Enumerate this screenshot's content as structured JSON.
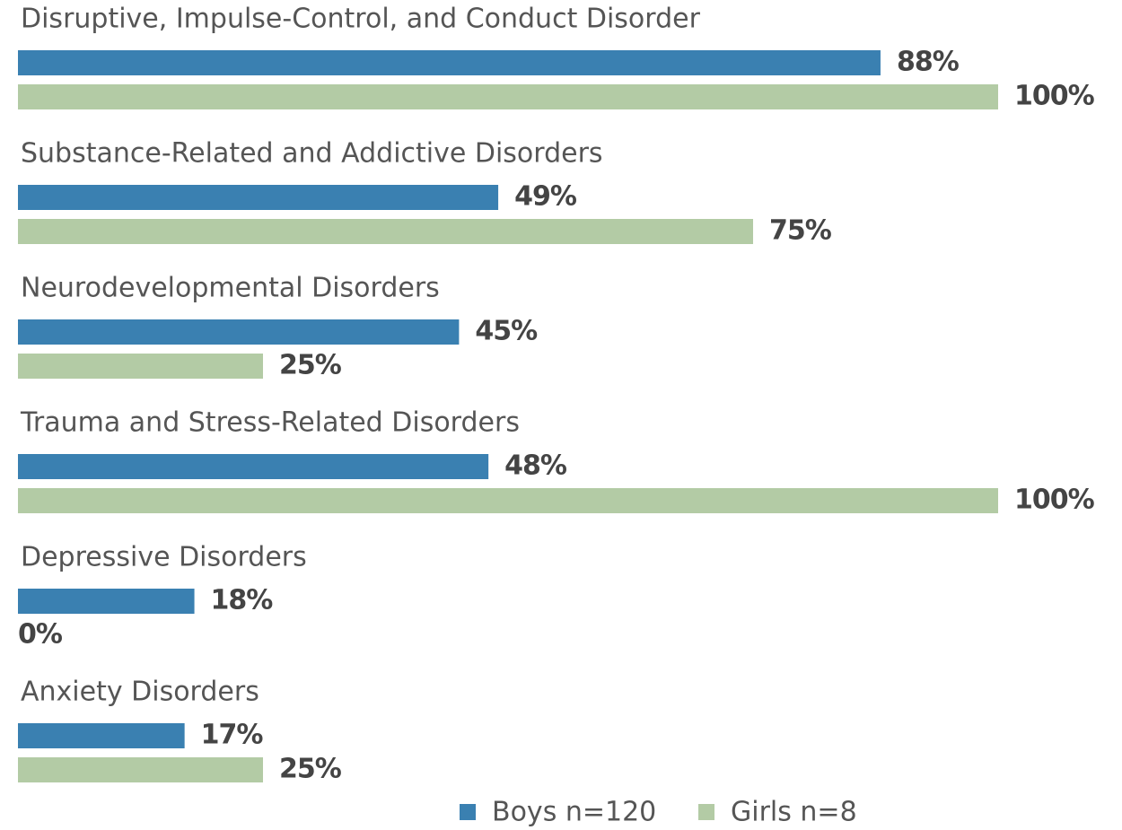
{
  "chart_data": {
    "type": "bar",
    "categories": [
      "Disruptive, Impulse-Control, and Conduct Disorder",
      "Substance-Related and Addictive Disorders",
      "Neurodevelopmental Disorders",
      "Trauma and Stress-Related Disorders",
      "Depressive Disorders",
      "Anxiety Disorders"
    ],
    "series": [
      {
        "name": "Boys n=120",
        "color": "#3a80b1",
        "values": [
          88,
          49,
          45,
          48,
          18,
          17
        ],
        "value_labels": [
          "88%",
          "49%",
          "45%",
          "48%",
          "18%",
          "17%"
        ]
      },
      {
        "name": "Girls n=8",
        "color": "#b3cba5",
        "values": [
          100,
          75,
          25,
          100,
          0,
          25
        ],
        "value_labels": [
          "100%",
          "75%",
          "25%",
          "100%",
          "0%",
          "25%"
        ]
      }
    ]
  }
}
